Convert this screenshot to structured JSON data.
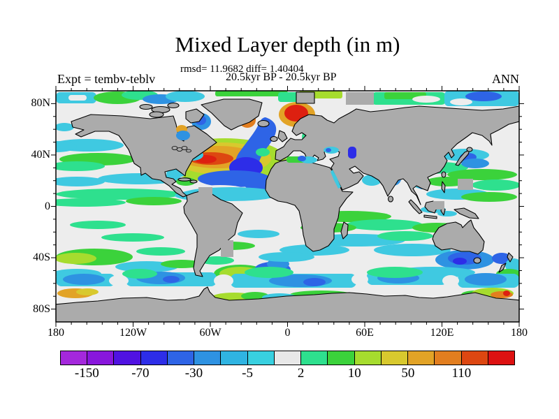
{
  "title": "Mixed Layer depth (in m)",
  "subtitle_stats": "rmsd= 11.9682 diff= 1.40404",
  "subtitle_period": "20.5kyr BP - 20.5kyr BP",
  "experiment_label": "Expt = tembv-teblv",
  "season_label": "ANN",
  "axes": {
    "lat_ticks": [
      {
        "label": "80N",
        "lat": 80
      },
      {
        "label": "40N",
        "lat": 40
      },
      {
        "label": "0",
        "lat": 0
      },
      {
        "label": "40S",
        "lat": -40
      },
      {
        "label": "80S",
        "lat": -80
      }
    ],
    "lon_ticks": [
      {
        "label": "180",
        "lon": -180
      },
      {
        "label": "120W",
        "lon": -120
      },
      {
        "label": "60W",
        "lon": -60
      },
      {
        "label": "0",
        "lon": 0
      },
      {
        "label": "60E",
        "lon": 60
      },
      {
        "label": "120E",
        "lon": 120
      },
      {
        "label": "180",
        "lon": 180
      }
    ]
  },
  "colorbar": {
    "cell_colors": [
      "#A428DC",
      "#8816DC",
      "#5012E2",
      "#2D2DE8",
      "#2E64E6",
      "#2E92E2",
      "#2FB4E2",
      "#38D0E0",
      "#E8E8E8",
      "#2EE08E",
      "#3BD23B",
      "#A6DC2E",
      "#D8C92E",
      "#E2A326",
      "#E27E1F",
      "#DD4711",
      "#DD1111"
    ],
    "boundaries": [
      -150,
      -110,
      -70,
      -50,
      -30,
      -15,
      -5,
      -2,
      2,
      5,
      10,
      30,
      50,
      70,
      110,
      150
    ],
    "tick_labels": [
      {
        "text": "-150",
        "boundary_index": 1
      },
      {
        "text": "-70",
        "boundary_index": 3
      },
      {
        "text": "-30",
        "boundary_index": 5
      },
      {
        "text": "-5",
        "boundary_index": 7
      },
      {
        "text": "2",
        "boundary_index": 9
      },
      {
        "text": "10",
        "boundary_index": 11
      },
      {
        "text": "50",
        "boundary_index": 13
      },
      {
        "text": "110",
        "boundary_index": 15
      }
    ]
  },
  "chart_data": {
    "type": "heatmap",
    "title": "Mixed Layer depth (in m)",
    "units": "m",
    "statistics": {
      "rmsd": 11.9682,
      "diff": 1.40404
    },
    "comparison": "20.5kyr BP - 20.5kyr BP",
    "experiment": "tembv-teblv",
    "season": "ANN",
    "projection": "equirectangular",
    "lon_range": [
      -180,
      180
    ],
    "lat_range": [
      -90,
      90
    ],
    "lon_tick_labels": [
      "180",
      "120W",
      "60W",
      "0",
      "60E",
      "120E",
      "180"
    ],
    "lat_tick_labels": [
      "80N",
      "40N",
      "0",
      "40S",
      "80S"
    ],
    "contour_levels": [
      -150,
      -110,
      -70,
      -50,
      -30,
      -15,
      -5,
      -2,
      2,
      5,
      10,
      30,
      50,
      70,
      110,
      150
    ],
    "palette": [
      "#A428DC",
      "#8816DC",
      "#5012E2",
      "#2D2DE8",
      "#2E64E6",
      "#2E92E2",
      "#2FB4E2",
      "#38D0E0",
      "#E8E8E8",
      "#2EE08E",
      "#3BD23B",
      "#A6DC2E",
      "#D8C92E",
      "#E2A326",
      "#E27E1F",
      "#DD4711",
      "#DD1111"
    ],
    "notable_features": [
      "North Atlantic dipole: deep negative (blue, -30 to -150 m) band along western Europe and NW Africa beside strong positive (orange/red, +50 to +150 m) band in the central subtropical gyre and Labrador Sea",
      "Strong positive (red) anomalies in the Norwegian and Barents Seas",
      "Most of the subtropical oceans near zero (gray/white, -2 to +2 m)",
      "Zonal bands of +/-5 to 30 m anomalies (cyan/green) along the equatorial Pacific and the Southern Ocean 40S-65S",
      "Scattered positive (yellow/orange) patches along the Antarctic coast",
      "Continents and permanently ice-covered polar ocean masked in gray"
    ]
  }
}
